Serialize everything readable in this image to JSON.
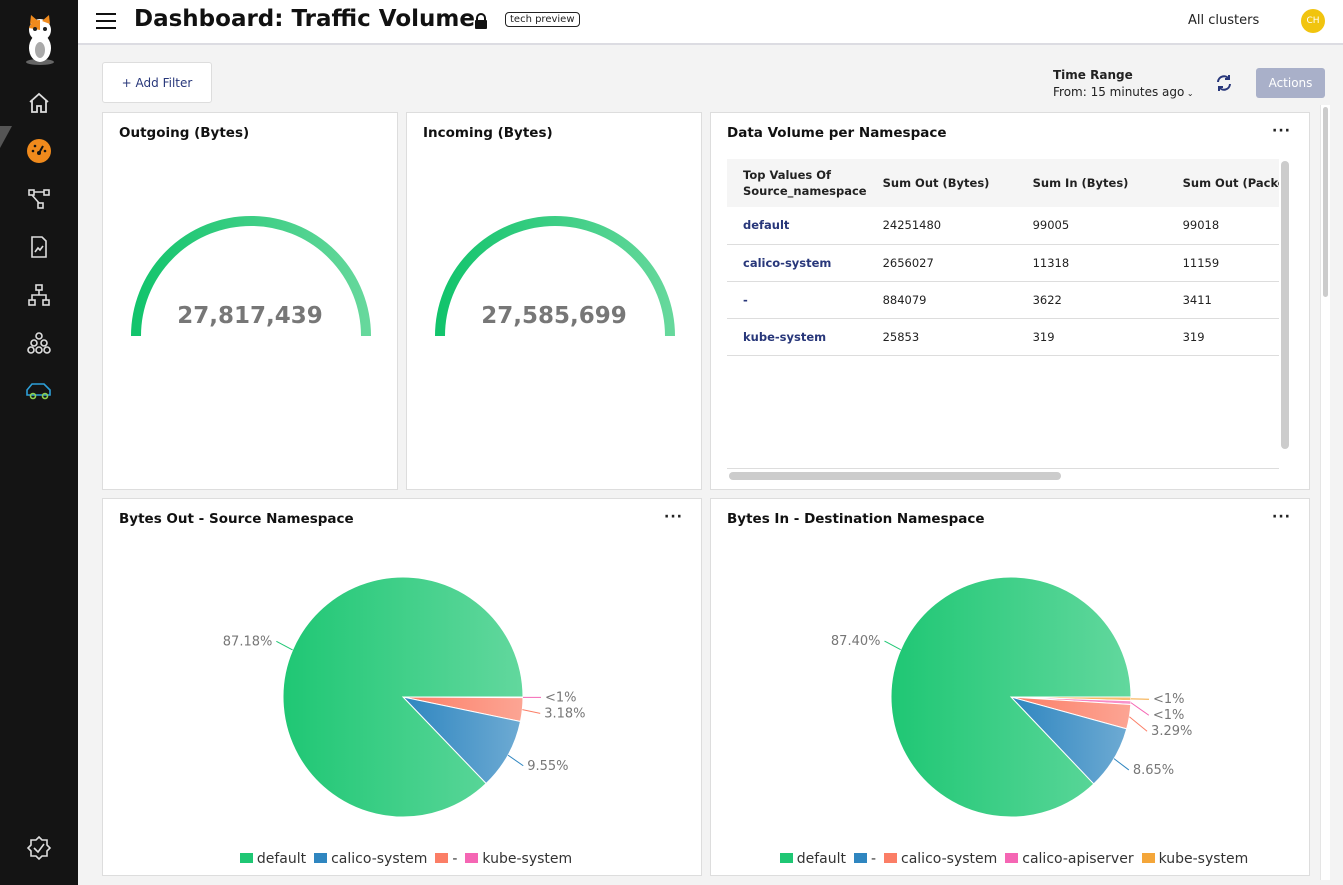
{
  "header": {
    "title": "Dashboard: Traffic Volume",
    "badge": "tech preview",
    "cluster": "All clusters",
    "avatar": "CH"
  },
  "toolbar": {
    "add_filter": "+ Add Filter",
    "time_range_label": "Time Range",
    "time_range_value": "From: 15 minutes ago",
    "actions": "Actions"
  },
  "sidebar": {
    "items": [
      "home-icon",
      "dashboard-icon",
      "topology-icon",
      "policy-icon",
      "network-icon",
      "cluster-icon",
      "traffic-icon",
      "status-icon"
    ]
  },
  "gauges": [
    {
      "title": "Outgoing (Bytes)",
      "value": "27,817,439"
    },
    {
      "title": "Incoming (Bytes)",
      "value": "27,585,699"
    }
  ],
  "table": {
    "title": "Data Volume per Namespace",
    "columns": [
      "Top Values Of Source_namespace",
      "Sum Out (Bytes)",
      "Sum In (Bytes)",
      "Sum Out (Packet"
    ],
    "rows": [
      [
        "default",
        "24251480",
        "99005",
        "99018"
      ],
      [
        "calico-system",
        "2656027",
        "11318",
        "11159"
      ],
      [
        "-",
        "884079",
        "3622",
        "3411"
      ],
      [
        "kube-system",
        "25853",
        "319",
        "319"
      ]
    ]
  },
  "chart_data": [
    {
      "type": "pie",
      "title": "Bytes Out - Source Namespace",
      "legend": "bottom",
      "slices": [
        {
          "name": "default",
          "value": 87.18,
          "label": "87.18%",
          "color": "#1fc774"
        },
        {
          "name": "calico-system",
          "value": 9.55,
          "label": "9.55%",
          "color": "#2f86c0"
        },
        {
          "name": "-",
          "value": 3.18,
          "label": "3.18%",
          "color": "#fb7e66"
        },
        {
          "name": "kube-system",
          "value": 0.09,
          "label": "<1%",
          "color": "#f566b4"
        }
      ]
    },
    {
      "type": "pie",
      "title": "Bytes In - Destination Namespace",
      "legend": "bottom",
      "slices": [
        {
          "name": "default",
          "value": 87.4,
          "label": "87.40%",
          "color": "#1fc774"
        },
        {
          "name": "-",
          "value": 8.65,
          "label": "8.65%",
          "color": "#2f86c0"
        },
        {
          "name": "calico-system",
          "value": 3.29,
          "label": "3.29%",
          "color": "#fb7e66"
        },
        {
          "name": "calico-apiserver",
          "value": 0.5,
          "label": "<1%",
          "color": "#f566b4"
        },
        {
          "name": "kube-system",
          "value": 0.5,
          "label": "<1%",
          "color": "#f4a63a"
        }
      ]
    }
  ]
}
